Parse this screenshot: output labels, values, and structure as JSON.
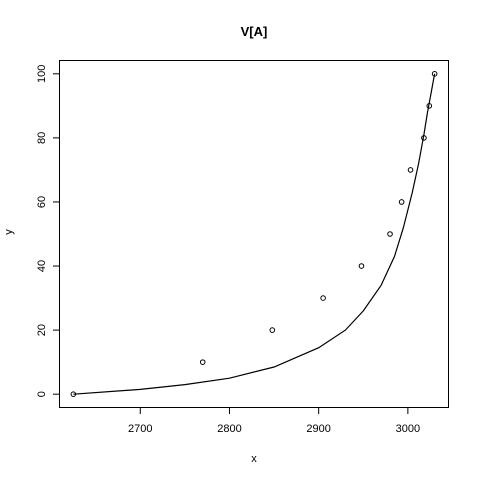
{
  "chart_data": {
    "type": "scatter",
    "title": "V[A]",
    "xlabel": "x",
    "ylabel": "y",
    "xlim": [
      2610,
      3045
    ],
    "ylim": [
      -4,
      104
    ],
    "x_ticks": [
      2700,
      2800,
      2900,
      3000
    ],
    "y_ticks": [
      0,
      20,
      40,
      60,
      80,
      100
    ],
    "grid": false,
    "points": {
      "x": [
        2625,
        2770,
        2848,
        2905,
        2948,
        2980,
        2993,
        3003,
        3018,
        3024,
        3030
      ],
      "y": [
        0,
        10,
        20,
        30,
        40,
        50,
        60,
        70,
        80,
        90,
        100
      ]
    },
    "curve": {
      "x": [
        2625,
        2700,
        2750,
        2800,
        2850,
        2900,
        2930,
        2950,
        2970,
        2985,
        2995,
        3005,
        3012,
        3018,
        3022,
        3026,
        3030
      ],
      "y": [
        0,
        1.5,
        3,
        5,
        8.5,
        14.5,
        20,
        26,
        34,
        43,
        52,
        63,
        72,
        81,
        88,
        94,
        100
      ]
    }
  }
}
